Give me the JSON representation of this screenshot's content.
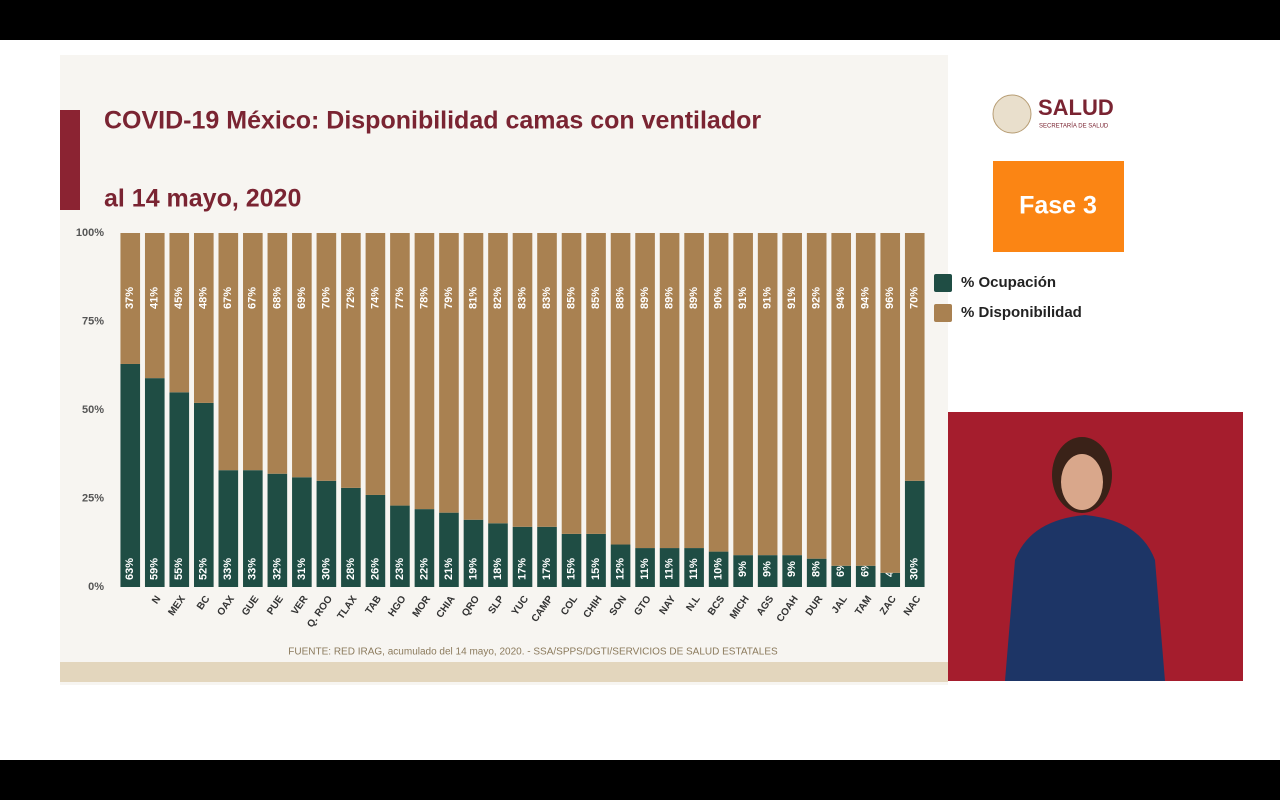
{
  "header": {
    "brand": "SALUD",
    "brand_sub": "SECRETARÍA DE SALUD",
    "phase": "Fase 3"
  },
  "source": "FUENTE: RED IRAG, acumulado del 14 mayo, 2020. -   SSA/SPPS/DGTI/SERVICIOS DE SALUD ESTATALES",
  "chart_data": {
    "type": "stacked-bar",
    "title": "COVID-19 México: Disponibilidad camas con ventilador",
    "subtitle": "al 14 mayo, 2020",
    "categories": [
      null,
      "N",
      "MEX",
      "BC",
      "OAX",
      "GUE",
      "PUE",
      "VER",
      "Q. ROO",
      "TLAX",
      "TAB",
      "HGO",
      "MOR",
      "CHIA",
      "QRO",
      "SLP",
      "YUC",
      "CAMP",
      "COL",
      "CHIH",
      "SON",
      "GTO",
      "NAY",
      "N.L",
      "BCS",
      "MICH",
      "AGS",
      "COAH",
      "DUR",
      "JAL",
      "TAM",
      "ZAC",
      "NAC"
    ],
    "series": [
      {
        "name": "% Ocupación",
        "color": "#1f4d44",
        "values": [
          63,
          59,
          55,
          52,
          33,
          33,
          32,
          31,
          30,
          28,
          26,
          23,
          22,
          21,
          19,
          18,
          17,
          17,
          15,
          15,
          12,
          11,
          11,
          11,
          10,
          9,
          9,
          9,
          8,
          6,
          6,
          4,
          30
        ],
        "value_labels": [
          "63%",
          "59%",
          "55%",
          "52%",
          "33%",
          "33%",
          "32%",
          "31%",
          "30%",
          "28%",
          "26%",
          "23%",
          "22%",
          "21%",
          "19%",
          "18%",
          "17%",
          "17%",
          "15%",
          "15%",
          "12%",
          "11%",
          "11%",
          "11%",
          "10%",
          "9%",
          "9%",
          "9%",
          "8%",
          "6%",
          "6%",
          "4%",
          "30%"
        ]
      },
      {
        "name": "% Disponibilidad",
        "color": "#a98151",
        "values": [
          37,
          41,
          45,
          48,
          67,
          67,
          68,
          69,
          70,
          72,
          74,
          77,
          78,
          79,
          81,
          82,
          83,
          83,
          85,
          85,
          88,
          89,
          89,
          89,
          90,
          91,
          91,
          91,
          92,
          94,
          94,
          96,
          70
        ],
        "value_labels": [
          "37%",
          "41%",
          "45%",
          "48%",
          "67%",
          "67%",
          "68%",
          "69%",
          "70%",
          "72%",
          "74%",
          "77%",
          "78%",
          "79%",
          "81%",
          "82%",
          "83%",
          "83%",
          "85%",
          "85%",
          "88%",
          "89%",
          "89%",
          "89%",
          "90%",
          "91%",
          "91%",
          "91%",
          "92%",
          "94%",
          "94%",
          "96%",
          "70%"
        ]
      }
    ],
    "ylim": [
      0,
      100
    ],
    "yticks": [
      {
        "value": 0,
        "label": "0%"
      },
      {
        "value": 25,
        "label": "25%"
      },
      {
        "value": 50,
        "label": "50%"
      },
      {
        "value": 75,
        "label": "75%"
      },
      {
        "value": 100,
        "label": "100%"
      }
    ],
    "legend": "right"
  }
}
